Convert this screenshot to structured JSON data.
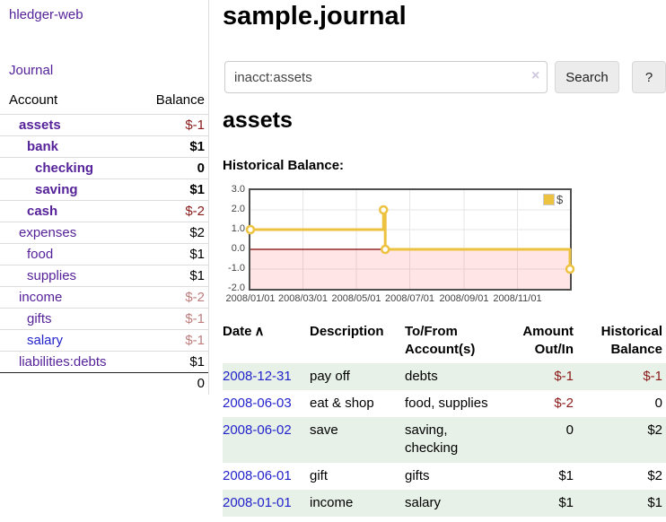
{
  "colors": {
    "link_purple": "#552299",
    "link_blue": "#2323cc",
    "negative_strong": "#8b1a1a",
    "negative_muted": "#bf7d7d",
    "row_green": "#e7f1e7",
    "chart_line": "#edc240",
    "zero_line": "#800000"
  },
  "sidebar": {
    "brand": "hledger-web",
    "journal_link": "Journal",
    "account_header": "Account",
    "balance_header": "Balance",
    "accounts": [
      {
        "name": "assets",
        "depth": 1,
        "bold": true,
        "color": "purple",
        "balance": "$-1",
        "neg": "strong"
      },
      {
        "name": "bank",
        "depth": 2,
        "bold": true,
        "color": "purple",
        "balance": "$1",
        "neg": null
      },
      {
        "name": "checking",
        "depth": 3,
        "bold": true,
        "color": "purple",
        "balance": "0",
        "neg": null
      },
      {
        "name": "saving",
        "depth": 3,
        "bold": true,
        "color": "purple",
        "balance": "$1",
        "neg": null
      },
      {
        "name": "cash",
        "depth": 2,
        "bold": true,
        "color": "purple",
        "balance": "$-2",
        "neg": "strong"
      },
      {
        "name": "expenses",
        "depth": 1,
        "bold": false,
        "color": "purple",
        "balance": "$2",
        "neg": null
      },
      {
        "name": "food",
        "depth": 2,
        "bold": false,
        "color": "purple",
        "balance": "$1",
        "neg": null
      },
      {
        "name": "supplies",
        "depth": 2,
        "bold": false,
        "color": "purple",
        "balance": "$1",
        "neg": null
      },
      {
        "name": "income",
        "depth": 1,
        "bold": false,
        "color": "purple",
        "balance": "$-2",
        "neg": "muted"
      },
      {
        "name": "gifts",
        "depth": 2,
        "bold": false,
        "color": "purple",
        "balance": "$-1",
        "neg": "muted"
      },
      {
        "name": "salary",
        "depth": 2,
        "bold": false,
        "color": "blue",
        "balance": "$-1",
        "neg": "muted"
      },
      {
        "name": "liabilities:debts",
        "depth": 1,
        "bold": false,
        "color": "purple",
        "balance": "$1",
        "neg": null
      }
    ],
    "total_balance": "0"
  },
  "header": {
    "title": "sample.journal"
  },
  "search": {
    "value": "inacct:assets",
    "clear_icon": "×",
    "search_button": "Search",
    "help_button": "?"
  },
  "account_page": {
    "title": "assets",
    "chart_heading": "Historical Balance:"
  },
  "chart_data": {
    "type": "line",
    "style": "steps",
    "title": "Historical Balance:",
    "legend": "$",
    "legend_position": "top-right",
    "line_color": "#edc240",
    "grid": true,
    "x_range": [
      "2008-01-01",
      "2008-12-31"
    ],
    "ylim": [
      -2,
      3
    ],
    "yticks": [
      "3.0",
      "2.0",
      "1.0",
      "0.0",
      "-1.0",
      "-2.0"
    ],
    "xticks": [
      "2008/01/01",
      "2008/03/01",
      "2008/05/01",
      "2008/07/01",
      "2008/09/01",
      "2008/11/01"
    ],
    "points": [
      [
        "2008-01-01",
        1
      ],
      [
        "2008-06-01",
        2
      ],
      [
        "2008-06-03",
        0
      ],
      [
        "2008-12-31",
        -1
      ]
    ],
    "negative_region": true,
    "zero_line_color": "#800000"
  },
  "register_table": {
    "sort_icon": "∧",
    "columns": [
      "Date",
      "Description",
      "To/From Account(s)",
      "Amount Out/In",
      "Historical Balance"
    ],
    "rows": [
      {
        "date": "2008-12-31",
        "description": "pay off",
        "accounts": "debts",
        "amount": "$-1",
        "amount_neg": true,
        "balance": "$-1",
        "balance_neg": true
      },
      {
        "date": "2008-06-03",
        "description": "eat & shop",
        "accounts": "food, supplies",
        "amount": "$-2",
        "amount_neg": true,
        "balance": "0",
        "balance_neg": false
      },
      {
        "date": "2008-06-02",
        "description": "save",
        "accounts": "saving, checking",
        "amount": "0",
        "amount_neg": false,
        "balance": "$2",
        "balance_neg": false
      },
      {
        "date": "2008-06-01",
        "description": "gift",
        "accounts": "gifts",
        "amount": "$1",
        "amount_neg": false,
        "balance": "$2",
        "balance_neg": false
      },
      {
        "date": "2008-01-01",
        "description": "income",
        "accounts": "salary",
        "amount": "$1",
        "amount_neg": false,
        "balance": "$1",
        "balance_neg": false
      }
    ]
  }
}
